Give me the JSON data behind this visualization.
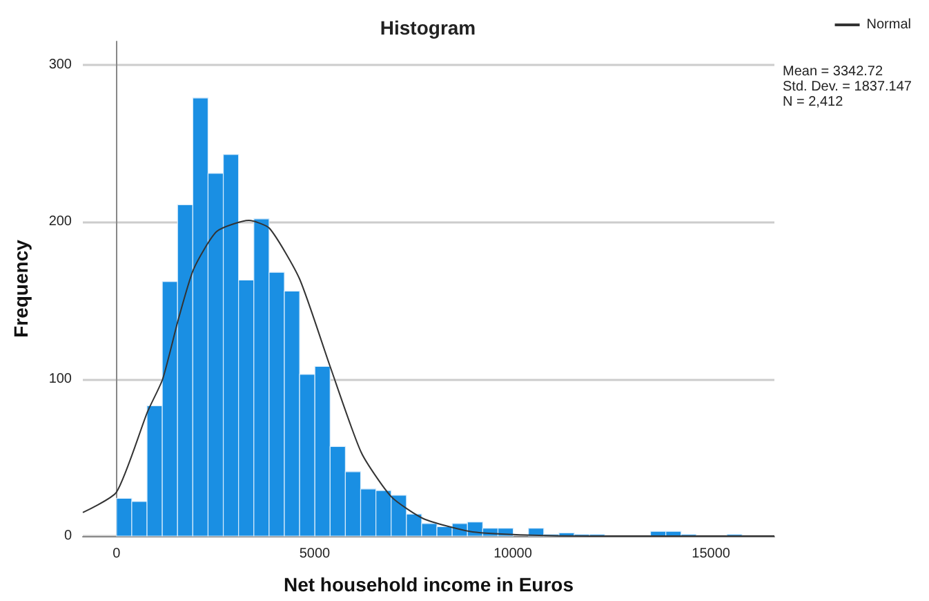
{
  "chart_data": {
    "type": "histogram",
    "title": "Histogram",
    "xlabel": "Net household income in Euros",
    "ylabel": "Frequency",
    "series": [
      {
        "color": "#1a8fe3",
        "bins": [
          0,
          385,
          770,
          1155,
          1540,
          1925,
          2310,
          2695,
          3080,
          3465,
          3850,
          4235,
          4620,
          5005,
          5390,
          5775,
          6160,
          6545,
          6930,
          7315,
          7700,
          8085,
          8470,
          8855,
          9240,
          9625,
          10010,
          10395,
          10780,
          11165,
          11550,
          11935,
          12320,
          12705,
          13090,
          13475,
          13860,
          14245,
          14630,
          15015,
          15400,
          15785
        ],
        "values": [
          24,
          22,
          83,
          162,
          211,
          279,
          231,
          243,
          163,
          202,
          168,
          156,
          103,
          108,
          57,
          41,
          30,
          29,
          26,
          14,
          8,
          6,
          8,
          9,
          5,
          5,
          0,
          5,
          1,
          2,
          1,
          1,
          0,
          0,
          0,
          3,
          3,
          1,
          0,
          0,
          1
        ]
      },
      {
        "type": "line",
        "name": "Normal",
        "color": "#333333",
        "x": [
          -850,
          0,
          780,
          1165,
          1560,
          1945,
          2530,
          3340,
          3860,
          4615,
          5390,
          6180,
          6935,
          7750,
          8910,
          10000,
          12000,
          16600
        ],
        "values": [
          15,
          28,
          79,
          100,
          138,
          170,
          194,
          201,
          196,
          164,
          108,
          53,
          25,
          11,
          3,
          1,
          0,
          0
        ]
      }
    ],
    "xlim": [
      -850,
      16600
    ],
    "xticks": [
      0,
      5000,
      10000,
      15000
    ],
    "ylim": [
      0,
      315
    ],
    "yticks": [
      0,
      100,
      200,
      300
    ],
    "grid": "y",
    "legend": "top right",
    "marker": "none",
    "annotations": [
      "Mean = 3342.72",
      "Std. Dev. = 1837.147",
      "N = 2,412"
    ]
  }
}
